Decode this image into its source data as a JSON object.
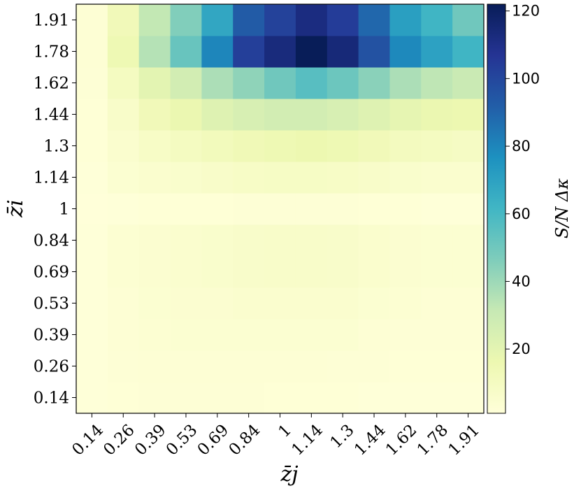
{
  "chart_data": {
    "type": "heatmap",
    "title": "",
    "xlabel": "z̄j",
    "ylabel": "z̄i",
    "colorbar_label": "S/N  Δκ",
    "colormap": "YlGnBu",
    "x_categories": [
      "0.14",
      "0.26",
      "0.39",
      "0.53",
      "0.69",
      "0.84",
      "1",
      "1.14",
      "1.3",
      "1.44",
      "1.62",
      "1.78",
      "1.91"
    ],
    "y_categories": [
      "0.14",
      "0.26",
      "0.39",
      "0.53",
      "0.69",
      "0.84",
      "1",
      "1.14",
      "1.3",
      "1.44",
      "1.62",
      "1.78",
      "1.91"
    ],
    "color_range": [
      1,
      122
    ],
    "colorbar_ticks": [
      "20",
      "40",
      "60",
      "80",
      "100",
      "120"
    ],
    "colorbar_tick_values": [
      20,
      40,
      60,
      80,
      100,
      120
    ],
    "values": [
      [
        1.5,
        2,
        2.5,
        2.5,
        2.5,
        2.5,
        2,
        2,
        2,
        1.5,
        1.5,
        1.5,
        1.5
      ],
      [
        1.5,
        2.5,
        3,
        3,
        3,
        3,
        3,
        3,
        2.5,
        2.5,
        2,
        2,
        2
      ],
      [
        1.5,
        3,
        3.5,
        4,
        4,
        4,
        4,
        4,
        4,
        3,
        2.5,
        2.5,
        2.5
      ],
      [
        1.5,
        3,
        4,
        4.5,
        4.5,
        5,
        5,
        5,
        5,
        4,
        3.5,
        3,
        3
      ],
      [
        1.5,
        3.5,
        4.5,
        5,
        6,
        6.5,
        7,
        7,
        6.5,
        5.5,
        4.5,
        4,
        4
      ],
      [
        1.5,
        3.5,
        4.5,
        5,
        6,
        6.5,
        7,
        7,
        6.5,
        5.5,
        4.5,
        4,
        4
      ],
      [
        1,
        1.5,
        2,
        2,
        2,
        2.5,
        2.5,
        2.5,
        2.5,
        2,
        2,
        1.5,
        1.5
      ],
      [
        1.5,
        4,
        5,
        6,
        7,
        8,
        8.5,
        8.5,
        8,
        7,
        6,
        5,
        5
      ],
      [
        2,
        5,
        8,
        10,
        12,
        14,
        15,
        16,
        15,
        13,
        11,
        10,
        9
      ],
      [
        2,
        7,
        13,
        17,
        22,
        25,
        27,
        27,
        25,
        22,
        19,
        17,
        16
      ],
      [
        2.5,
        10,
        20,
        27,
        37,
        43,
        50,
        56,
        51,
        44,
        37,
        33,
        30
      ],
      [
        3,
        15,
        35,
        52,
        80,
        103,
        113,
        122,
        114,
        96,
        79,
        70,
        62
      ],
      [
        3,
        13,
        32,
        46,
        68,
        93,
        102,
        112,
        104,
        89,
        71,
        62,
        50
      ]
    ]
  }
}
